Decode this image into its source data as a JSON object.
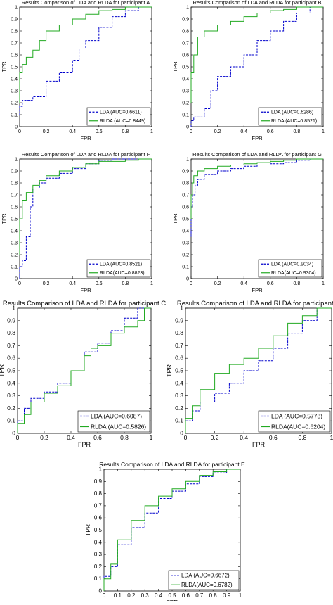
{
  "figure": {
    "description": ""
  },
  "chart_data": [
    {
      "type": "line",
      "title": "Results Comparison of LDA and RLDA for participant A",
      "xlabel": "FPR",
      "ylabel": "TPR",
      "xlim": [
        0,
        1
      ],
      "ylim": [
        0,
        1
      ],
      "xticks": [
        "0",
        "0.2",
        "0.4",
        "0.6",
        "0.8",
        "1"
      ],
      "yticks": [
        "0",
        "0.1",
        "0.2",
        "0.3",
        "0.4",
        "0.5",
        "0.6",
        "0.7",
        "0.8",
        "0.9",
        "1"
      ],
      "legend_position": "bottom-right",
      "series": [
        {
          "name": "LDA   (AUC=0.6611)",
          "color": "#0000cc",
          "dash": true,
          "x": [
            0,
            0.02,
            0.1,
            0.2,
            0.3,
            0.4,
            0.45,
            0.5,
            0.6,
            0.7,
            0.8,
            0.9,
            1
          ],
          "y": [
            0.1,
            0.17,
            0.22,
            0.25,
            0.38,
            0.45,
            0.55,
            0.65,
            0.72,
            0.83,
            0.92,
            0.97,
            1
          ]
        },
        {
          "name": "RLDA (AUC=0.8449)",
          "color": "#22aa22",
          "dash": false,
          "x": [
            0,
            0.02,
            0.05,
            0.1,
            0.15,
            0.2,
            0.3,
            0.4,
            0.5,
            0.6,
            0.7,
            0.8,
            0.9,
            1
          ],
          "y": [
            0.2,
            0.45,
            0.52,
            0.58,
            0.64,
            0.72,
            0.8,
            0.85,
            0.9,
            0.94,
            0.97,
            0.98,
            1,
            1
          ]
        }
      ]
    },
    {
      "type": "line",
      "title": "Results Comparison of LDA and RLDA for participant B",
      "xlabel": "FPR",
      "ylabel": "TPR",
      "xlim": [
        0,
        1
      ],
      "ylim": [
        0,
        1
      ],
      "xticks": [
        "0",
        "0.2",
        "0.4",
        "0.6",
        "0.8",
        "1"
      ],
      "yticks": [
        "0",
        "0.1",
        "0.2",
        "0.3",
        "0.4",
        "0.5",
        "0.6",
        "0.7",
        "0.8",
        "0.9",
        "1"
      ],
      "legend_position": "bottom-right",
      "series": [
        {
          "name": "LDA    (AUC=0.6286)",
          "color": "#0000cc",
          "dash": true,
          "x": [
            0,
            0.02,
            0.05,
            0.1,
            0.15,
            0.2,
            0.3,
            0.4,
            0.5,
            0.6,
            0.7,
            0.8,
            0.9,
            1
          ],
          "y": [
            0,
            0.05,
            0.08,
            0.08,
            0.15,
            0.3,
            0.42,
            0.5,
            0.6,
            0.72,
            0.8,
            0.88,
            0.95,
            1
          ]
        },
        {
          "name": "RLDA  (AUC=0.8521)",
          "color": "#22aa22",
          "dash": false,
          "x": [
            0,
            0.02,
            0.05,
            0.1,
            0.2,
            0.3,
            0.4,
            0.5,
            0.6,
            0.7,
            0.8,
            0.9,
            1
          ],
          "y": [
            0.2,
            0.45,
            0.6,
            0.75,
            0.8,
            0.85,
            0.88,
            0.92,
            0.95,
            0.97,
            0.98,
            1,
            1
          ]
        }
      ]
    },
    {
      "type": "line",
      "title": "Results Comparison of LDA and RLDA for participant F",
      "xlabel": "FPR",
      "ylabel": "TPR",
      "xlim": [
        0,
        1
      ],
      "ylim": [
        0,
        1
      ],
      "xticks": [
        "0",
        "0.2",
        "0.4",
        "0.6",
        "0.8",
        "1"
      ],
      "yticks": [
        "0",
        "0.1",
        "0.2",
        "0.3",
        "0.4",
        "0.5",
        "0.6",
        "0.7",
        "0.8",
        "0.9",
        "1"
      ],
      "legend_position": "bottom-right",
      "series": [
        {
          "name": "LDA    (AUC=0.8521)",
          "color": "#0000cc",
          "dash": true,
          "x": [
            0,
            0.02,
            0.05,
            0.08,
            0.1,
            0.15,
            0.2,
            0.3,
            0.4,
            0.5,
            0.6,
            0.7,
            0.8,
            1
          ],
          "y": [
            0,
            0.1,
            0.15,
            0.35,
            0.6,
            0.75,
            0.8,
            0.84,
            0.88,
            0.92,
            0.96,
            0.99,
            1,
            1
          ]
        },
        {
          "name": "RLDA(AUC=0.8823)",
          "color": "#22aa22",
          "dash": false,
          "x": [
            0,
            0.02,
            0.05,
            0.1,
            0.15,
            0.2,
            0.3,
            0.4,
            0.5,
            0.6,
            0.7,
            0.8,
            0.9,
            1
          ],
          "y": [
            0.2,
            0.5,
            0.65,
            0.72,
            0.78,
            0.82,
            0.86,
            0.9,
            0.93,
            0.96,
            0.98,
            0.98,
            0.99,
            1
          ]
        }
      ]
    },
    {
      "type": "line",
      "title": "Results Comparison of LDA and RLDA for participant G",
      "xlabel": "FPR",
      "ylabel": "TPR",
      "xlim": [
        0,
        1
      ],
      "ylim": [
        0,
        1
      ],
      "xticks": [
        "0",
        "0.2",
        "0.4",
        "0.6",
        "0.8",
        "1"
      ],
      "yticks": [
        "0",
        "0.1",
        "0.2",
        "0.3",
        "0.4",
        "0.5",
        "0.6",
        "0.7",
        "0.8",
        "0.9",
        "1"
      ],
      "legend_position": "bottom-right",
      "series": [
        {
          "name": "LDA    (AUC=0.9034)",
          "color": "#0000cc",
          "dash": true,
          "x": [
            0,
            0.01,
            0.03,
            0.05,
            0.1,
            0.2,
            0.3,
            0.4,
            0.5,
            0.6,
            0.7,
            0.8,
            0.9,
            1
          ],
          "y": [
            0.35,
            0.6,
            0.7,
            0.78,
            0.83,
            0.87,
            0.9,
            0.92,
            0.94,
            0.95,
            0.96,
            0.97,
            0.99,
            1
          ]
        },
        {
          "name": "RLDA(AUC=0.9304)",
          "color": "#22aa22",
          "dash": false,
          "x": [
            0,
            0.01,
            0.02,
            0.05,
            0.1,
            0.2,
            0.3,
            0.4,
            0.5,
            0.6,
            0.7,
            0.8,
            0.9,
            1
          ],
          "y": [
            0.5,
            0.7,
            0.8,
            0.86,
            0.9,
            0.92,
            0.94,
            0.95,
            0.96,
            0.97,
            0.98,
            0.99,
            1,
            1
          ]
        }
      ]
    },
    {
      "type": "line",
      "title": "Results Comparison of LDA and RLDA for participant C",
      "xlabel": "FPR",
      "ylabel": "TPR",
      "xlim": [
        0,
        1
      ],
      "ylim": [
        0,
        1
      ],
      "xticks": [
        "0",
        "0.2",
        "0.4",
        "0.6",
        "0.8",
        "1"
      ],
      "yticks": [
        "0",
        "0.1",
        "0.2",
        "0.3",
        "0.4",
        "0.5",
        "0.6",
        "0.7",
        "0.8",
        "0.9",
        "1"
      ],
      "legend_position": "bottom-right",
      "series": [
        {
          "name": "LDA   (AUC=0.6087)",
          "color": "#0000cc",
          "dash": true,
          "x": [
            0,
            0.05,
            0.1,
            0.2,
            0.3,
            0.4,
            0.5,
            0.6,
            0.7,
            0.8,
            0.9,
            1
          ],
          "y": [
            0,
            0.1,
            0.2,
            0.28,
            0.33,
            0.4,
            0.5,
            0.65,
            0.72,
            0.82,
            0.92,
            1
          ]
        },
        {
          "name": "RLDA (AUC=0.5826)",
          "color": "#22aa22",
          "dash": false,
          "x": [
            0,
            0.05,
            0.1,
            0.2,
            0.3,
            0.4,
            0.5,
            0.55,
            0.6,
            0.7,
            0.8,
            0.9,
            0.95,
            1
          ],
          "y": [
            0,
            0.08,
            0.15,
            0.25,
            0.32,
            0.38,
            0.5,
            0.62,
            0.68,
            0.7,
            0.8,
            0.85,
            0.9,
            1
          ]
        }
      ]
    },
    {
      "type": "line",
      "title": "Results Comparison of LDA and RLDA for participant D",
      "xlabel": "FPR",
      "ylabel": "TPR",
      "xlim": [
        0,
        1
      ],
      "ylim": [
        0,
        1
      ],
      "xticks": [
        "0",
        "0.2",
        "0.4",
        "0.6",
        "0.8",
        "1"
      ],
      "yticks": [
        "0",
        "0.1",
        "0.2",
        "0.3",
        "0.4",
        "0.5",
        "0.6",
        "0.7",
        "0.8",
        "0.9",
        "1"
      ],
      "legend_position": "bottom-right",
      "series": [
        {
          "name": "LDA   (AUC=0.5778)",
          "color": "#0000cc",
          "dash": true,
          "x": [
            0,
            0.05,
            0.1,
            0.2,
            0.3,
            0.4,
            0.5,
            0.6,
            0.7,
            0.8,
            0.9,
            1
          ],
          "y": [
            0,
            0.1,
            0.18,
            0.25,
            0.32,
            0.4,
            0.5,
            0.58,
            0.68,
            0.8,
            0.9,
            1
          ]
        },
        {
          "name": "RLDA(AUC=0.6204)",
          "color": "#22aa22",
          "dash": false,
          "x": [
            0,
            0.05,
            0.1,
            0.2,
            0.3,
            0.4,
            0.5,
            0.6,
            0.7,
            0.8,
            0.9,
            1
          ],
          "y": [
            0,
            0.12,
            0.22,
            0.35,
            0.48,
            0.55,
            0.6,
            0.68,
            0.78,
            0.88,
            0.94,
            1
          ]
        }
      ]
    },
    {
      "type": "line",
      "title": "Results Comparison of LDA and RLDA for participant E",
      "xlabel": "FPR",
      "ylabel": "TPR",
      "xlim": [
        0,
        1
      ],
      "ylim": [
        0,
        1
      ],
      "xticks": [
        "0",
        "0.1",
        "0.2",
        "0.3",
        "0.4",
        "0.5",
        "0.6",
        "0.7",
        "0.8",
        "0.9",
        "1"
      ],
      "yticks": [
        "0",
        "0.1",
        "0.2",
        "0.3",
        "0.4",
        "0.5",
        "0.6",
        "0.7",
        "0.8",
        "0.9",
        "1"
      ],
      "legend_position": "bottom-right",
      "series": [
        {
          "name": "LDA   (AUC=0.6672)",
          "color": "#0000cc",
          "dash": true,
          "x": [
            0,
            0.05,
            0.1,
            0.2,
            0.3,
            0.4,
            0.5,
            0.6,
            0.7,
            0.8,
            0.9,
            1
          ],
          "y": [
            0,
            0.12,
            0.2,
            0.38,
            0.52,
            0.64,
            0.76,
            0.82,
            0.88,
            0.94,
            0.97,
            1
          ]
        },
        {
          "name": "RLDA(AUC=0.6782)",
          "color": "#22aa22",
          "dash": false,
          "x": [
            0,
            0.05,
            0.1,
            0.2,
            0.3,
            0.4,
            0.5,
            0.6,
            0.7,
            0.8,
            0.9,
            1
          ],
          "y": [
            0,
            0.1,
            0.22,
            0.42,
            0.58,
            0.7,
            0.78,
            0.84,
            0.9,
            0.95,
            0.98,
            1
          ]
        }
      ]
    }
  ]
}
